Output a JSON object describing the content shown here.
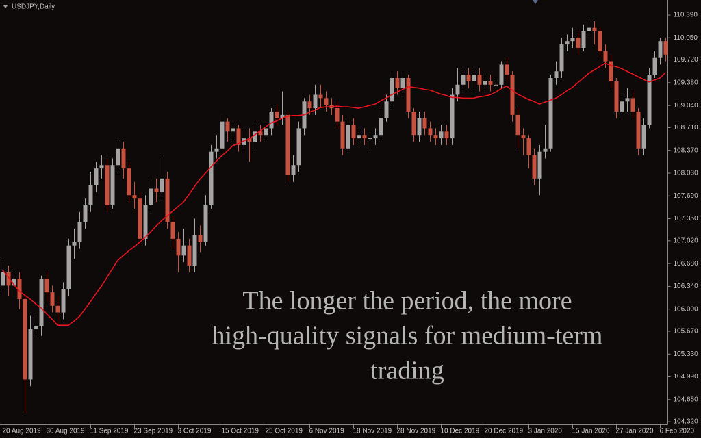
{
  "chart_data": {
    "type": "candlestick",
    "title": "USDJPY,Daily",
    "annotation": [
      "The longer the period, the more",
      "high-quality signals for medium-term",
      "trading"
    ],
    "up_color": "#a3a3a3",
    "down_color": "#c8503f",
    "ylim": [
      104.28,
      110.615
    ],
    "yticks": [
      {
        "value": 110.39,
        "label": "110.390"
      },
      {
        "value": 110.05,
        "label": "110.050"
      },
      {
        "value": 109.72,
        "label": "109.720"
      },
      {
        "value": 109.38,
        "label": "109.380"
      },
      {
        "value": 109.04,
        "label": "109.040"
      },
      {
        "value": 108.71,
        "label": "108.710"
      },
      {
        "value": 108.37,
        "label": "108.370"
      },
      {
        "value": 108.03,
        "label": "108.030"
      },
      {
        "value": 107.69,
        "label": "107.690"
      },
      {
        "value": 107.35,
        "label": "107.350"
      },
      {
        "value": 107.02,
        "label": "107.020"
      },
      {
        "value": 106.68,
        "label": "106.680"
      },
      {
        "value": 106.34,
        "label": "106.340"
      },
      {
        "value": 106.0,
        "label": "106.000"
      },
      {
        "value": 105.67,
        "label": "105.670"
      },
      {
        "value": 105.33,
        "label": "105.330"
      },
      {
        "value": 104.99,
        "label": "104.990"
      },
      {
        "value": 104.65,
        "label": "104.650"
      },
      {
        "value": 104.32,
        "label": "104.320"
      }
    ],
    "categories": [
      "20 Aug 2019",
      null,
      null,
      null,
      null,
      null,
      null,
      null,
      "30 Aug 2019",
      null,
      null,
      null,
      null,
      null,
      null,
      null,
      "11 Sep 2019",
      null,
      null,
      null,
      null,
      null,
      null,
      null,
      "23 Sep 2019",
      null,
      null,
      null,
      null,
      null,
      null,
      null,
      "3 Oct 2019",
      null,
      null,
      null,
      null,
      null,
      null,
      null,
      "15 Oct 2019",
      null,
      null,
      null,
      null,
      null,
      null,
      null,
      "25 Oct 2019",
      null,
      null,
      null,
      null,
      null,
      null,
      null,
      "6 Nov 2019",
      null,
      null,
      null,
      null,
      null,
      null,
      null,
      "18 Nov 2019",
      null,
      null,
      null,
      null,
      null,
      null,
      null,
      "28 Nov 2019",
      null,
      null,
      null,
      null,
      null,
      null,
      null,
      "10 Dec 2019",
      null,
      null,
      null,
      null,
      null,
      null,
      null,
      "20 Dec 2019",
      null,
      null,
      null,
      null,
      null,
      null,
      null,
      "3 Jan 2020",
      null,
      null,
      null,
      null,
      null,
      null,
      null,
      "15 Jan 2020",
      null,
      null,
      null,
      null,
      null,
      null,
      null,
      "27 Jan 2020",
      null,
      null,
      null,
      null,
      null,
      null,
      null,
      "6 Feb 2020",
      null
    ],
    "open": [
      106.35,
      106.55,
      106.35,
      106.45,
      106.15,
      104.95,
      105.7,
      105.75,
      106.45,
      106.25,
      106.05,
      105.95,
      106.3,
      106.95,
      107.0,
      107.3,
      107.55,
      107.85,
      108.1,
      108.15,
      107.55,
      108.15,
      108.4,
      108.1,
      107.7,
      107.65,
      107.05,
      107.55,
      107.8,
      107.75,
      107.95,
      107.3,
      107.05,
      106.8,
      106.95,
      106.65,
      107.1,
      107.0,
      107.55,
      108.35,
      108.4,
      108.8,
      108.65,
      108.7,
      108.45,
      108.55,
      108.5,
      108.65,
      108.6,
      108.7,
      108.95,
      108.85,
      108.9,
      108.0,
      108.15,
      108.7,
      109.1,
      109.0,
      109.2,
      109.15,
      109.05,
      109.0,
      108.8,
      108.4,
      108.75,
      108.55,
      108.6,
      108.55,
      108.55,
      108.6,
      108.85,
      109.1,
      109.45,
      109.3,
      109.45,
      108.95,
      108.6,
      108.85,
      108.7,
      108.6,
      108.55,
      108.65,
      108.55,
      109.2,
      109.35,
      109.5,
      109.4,
      109.5,
      109.35,
      109.4,
      109.35,
      109.35,
      109.65,
      109.5,
      108.9,
      108.6,
      108.55,
      108.3,
      107.95,
      108.35,
      108.4,
      109.45,
      109.55,
      109.95,
      110.0,
      110.05,
      109.9,
      110.15,
      110.2,
      110.15,
      109.85,
      109.7,
      109.4,
      108.95,
      109.1,
      109.15,
      108.95,
      108.4,
      108.75,
      109.5,
      109.75,
      110.0
    ],
    "high": [
      106.7,
      106.65,
      106.6,
      106.55,
      106.2,
      105.9,
      105.95,
      106.5,
      106.55,
      106.35,
      106.2,
      106.4,
      107.05,
      107.2,
      107.45,
      107.65,
      108.05,
      108.2,
      108.3,
      108.25,
      108.25,
      108.5,
      108.5,
      108.2,
      107.9,
      107.75,
      107.7,
      107.95,
      107.95,
      108.3,
      108.05,
      107.4,
      107.15,
      107.2,
      107.05,
      107.35,
      107.25,
      107.7,
      108.45,
      108.6,
      108.9,
      108.85,
      108.8,
      108.75,
      108.7,
      108.7,
      108.75,
      108.75,
      108.8,
      109.0,
      109.05,
      109.25,
      108.95,
      108.3,
      108.8,
      109.15,
      109.2,
      109.35,
      109.35,
      109.25,
      109.15,
      109.1,
      108.9,
      108.85,
      108.85,
      108.7,
      108.7,
      108.65,
      108.7,
      109.0,
      109.2,
      109.55,
      109.55,
      109.55,
      109.5,
      109.0,
      108.95,
      108.95,
      108.8,
      108.7,
      108.75,
      108.75,
      109.3,
      109.6,
      109.6,
      109.6,
      109.6,
      109.6,
      109.5,
      109.5,
      109.45,
      109.7,
      109.75,
      109.55,
      109.0,
      108.7,
      108.6,
      108.4,
      108.45,
      108.75,
      109.5,
      109.7,
      110.05,
      110.1,
      110.2,
      110.15,
      110.25,
      110.3,
      110.3,
      110.2,
      109.95,
      109.8,
      109.45,
      109.2,
      109.3,
      109.25,
      109.0,
      108.85,
      109.6,
      109.85,
      110.05,
      110.05
    ],
    "low": [
      106.25,
      106.2,
      106.2,
      106.0,
      104.45,
      104.85,
      105.6,
      105.6,
      106.1,
      105.95,
      105.75,
      105.85,
      106.2,
      106.75,
      106.9,
      107.2,
      107.45,
      107.75,
      107.95,
      107.45,
      107.5,
      108.05,
      107.95,
      107.6,
      107.5,
      106.95,
      106.95,
      107.45,
      107.6,
      107.65,
      107.2,
      106.9,
      106.55,
      106.7,
      106.55,
      106.55,
      106.85,
      106.95,
      107.5,
      108.25,
      108.3,
      108.5,
      108.5,
      108.35,
      108.35,
      108.2,
      108.4,
      108.5,
      108.5,
      108.6,
      108.75,
      108.75,
      107.9,
      107.9,
      108.05,
      108.6,
      108.9,
      108.9,
      109.0,
      108.95,
      108.9,
      108.7,
      108.3,
      108.35,
      108.45,
      108.45,
      108.45,
      108.4,
      108.45,
      108.5,
      108.8,
      109.0,
      109.2,
      109.2,
      108.85,
      108.5,
      108.5,
      108.6,
      108.5,
      108.45,
      108.45,
      108.45,
      108.45,
      109.1,
      109.25,
      109.3,
      109.3,
      109.25,
      109.25,
      109.25,
      109.25,
      109.3,
      109.4,
      108.8,
      108.4,
      108.3,
      108.1,
      107.85,
      107.7,
      108.25,
      108.35,
      109.35,
      109.45,
      109.85,
      109.9,
      109.8,
      109.85,
      110.05,
      109.95,
      109.75,
      109.6,
      109.3,
      108.85,
      108.85,
      108.95,
      108.85,
      108.3,
      108.3,
      108.7,
      109.45,
      109.65,
      109.7
    ],
    "close": [
      106.55,
      106.35,
      106.45,
      106.15,
      104.95,
      105.7,
      105.75,
      106.45,
      106.25,
      106.05,
      105.95,
      106.3,
      106.95,
      107.0,
      107.3,
      107.55,
      107.85,
      108.1,
      108.15,
      107.55,
      108.15,
      108.4,
      108.1,
      107.7,
      107.65,
      107.05,
      107.55,
      107.8,
      107.75,
      107.95,
      107.3,
      107.05,
      106.8,
      106.95,
      106.65,
      107.1,
      107.0,
      107.55,
      108.35,
      108.4,
      108.8,
      108.65,
      108.7,
      108.45,
      108.55,
      108.5,
      108.65,
      108.6,
      108.7,
      108.95,
      108.85,
      108.9,
      108.0,
      108.15,
      108.7,
      109.1,
      109.0,
      109.2,
      109.15,
      109.05,
      109.0,
      108.8,
      108.4,
      108.75,
      108.55,
      108.6,
      108.55,
      108.55,
      108.6,
      108.85,
      109.1,
      109.45,
      109.3,
      109.45,
      108.95,
      108.6,
      108.85,
      108.7,
      108.6,
      108.55,
      108.65,
      108.55,
      109.2,
      109.35,
      109.5,
      109.4,
      109.5,
      109.35,
      109.4,
      109.35,
      109.35,
      109.65,
      109.5,
      108.9,
      108.6,
      108.55,
      108.3,
      107.95,
      108.35,
      108.4,
      109.45,
      109.55,
      109.95,
      110.0,
      110.05,
      109.9,
      110.15,
      110.2,
      110.15,
      109.85,
      109.7,
      109.4,
      108.95,
      109.1,
      109.15,
      108.95,
      108.4,
      108.75,
      109.5,
      109.75,
      110.0,
      109.8
    ],
    "lines": [
      {
        "color": "#e8141e",
        "values": [
          106.58,
          106.48,
          106.37,
          106.27,
          106.21,
          106.15,
          106.08,
          106.02,
          105.93,
          105.85,
          105.76,
          105.76,
          105.76,
          105.82,
          105.89,
          106.0,
          106.11,
          106.23,
          106.34,
          106.47,
          106.6,
          106.73,
          106.8,
          106.87,
          106.93,
          107.0,
          107.07,
          107.15,
          107.24,
          107.32,
          107.39,
          107.46,
          107.53,
          107.6,
          107.71,
          107.83,
          107.94,
          108.03,
          108.12,
          108.21,
          108.29,
          108.36,
          108.44,
          108.47,
          108.51,
          108.54,
          108.6,
          108.66,
          108.72,
          108.78,
          108.81,
          108.85,
          108.88,
          108.89,
          108.89,
          108.9,
          108.94,
          108.97,
          109.01,
          109.02,
          109.02,
          109.03,
          109.02,
          109.02,
          109.01,
          109.0,
          109.02,
          109.04,
          109.06,
          109.11,
          109.15,
          109.2,
          109.24,
          109.28,
          109.32,
          109.31,
          109.3,
          109.28,
          109.27,
          109.24,
          109.21,
          109.19,
          109.16,
          109.16,
          109.15,
          109.15,
          109.15,
          109.17,
          109.18,
          109.2,
          109.24,
          109.29,
          109.33,
          109.27,
          109.21,
          109.17,
          109.13,
          109.1,
          109.06,
          109.09,
          109.12,
          109.15,
          109.2,
          109.26,
          109.31,
          109.38,
          109.45,
          109.52,
          109.57,
          109.62,
          109.67,
          109.64,
          109.62,
          109.59,
          109.55,
          109.51,
          109.47,
          109.43,
          109.39,
          109.42,
          109.45,
          109.53
        ]
      }
    ]
  }
}
